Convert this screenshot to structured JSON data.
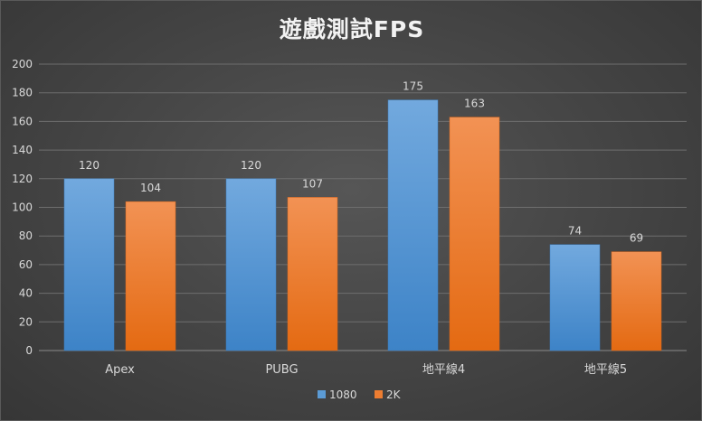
{
  "chart_data": {
    "type": "bar",
    "title": "遊戲測試FPS",
    "categories": [
      "Apex",
      "PUBG",
      "地平線4",
      "地平線5"
    ],
    "series": [
      {
        "name": "1080",
        "values": [
          120,
          120,
          175,
          74
        ],
        "color": "#5b9bd5"
      },
      {
        "name": "2K",
        "values": [
          104,
          107,
          163,
          69
        ],
        "color": "#ed7d31"
      }
    ],
    "ylim": [
      0,
      200
    ],
    "yticks": [
      0,
      20,
      40,
      60,
      80,
      100,
      120,
      140,
      160,
      180,
      200
    ],
    "grid": true,
    "legend_position": "bottom",
    "data_labels": true
  },
  "colors": {
    "background": "#474747",
    "text": "#d9d9d9",
    "title": "#f2f2f2",
    "grid": "#6e6e6e"
  }
}
